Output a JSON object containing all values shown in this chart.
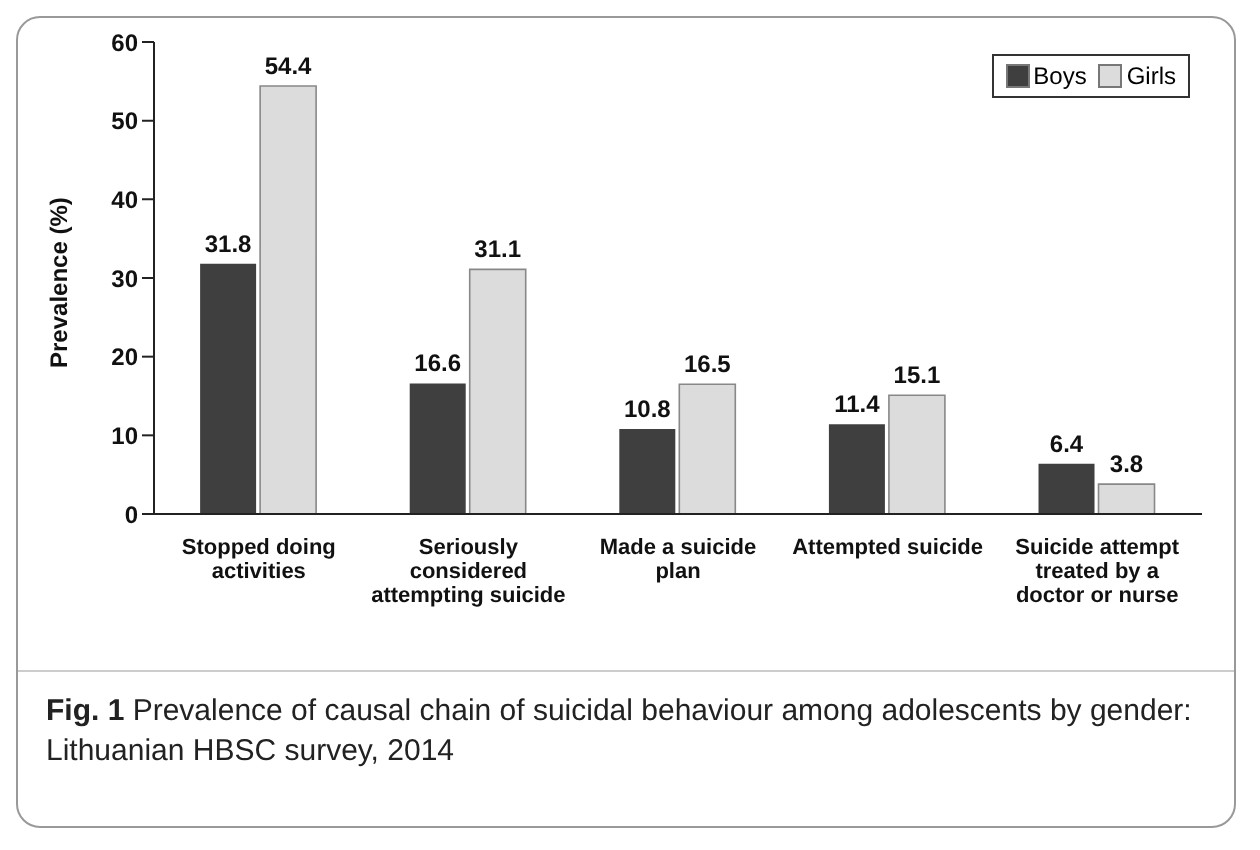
{
  "chart_data": {
    "type": "bar",
    "categories": [
      "Stopped doing activities",
      "Seriously considered attempting suicide",
      "Made a suicide plan",
      "Attempted suicide",
      "Suicide attempt treated by a doctor or nurse"
    ],
    "series": [
      {
        "name": "Boys",
        "color": "#3f3f3f",
        "values": [
          31.8,
          16.6,
          10.8,
          11.4,
          6.4
        ]
      },
      {
        "name": "Girls",
        "color": "#dcdcdc",
        "values": [
          54.4,
          31.1,
          16.5,
          15.1,
          3.8
        ]
      }
    ],
    "ylabel": "Prevalence (%)",
    "ylim": [
      0,
      60
    ],
    "yticks": [
      0,
      10,
      20,
      30,
      40,
      50,
      60
    ],
    "grid": false,
    "legend": "top right",
    "data_labels": true,
    "annotations": [
      "Fig. 1 Prevalence of causal chain of suicidal behaviour among adolescents by gender: Lithuanian HBSC survey, 2014"
    ]
  }
}
